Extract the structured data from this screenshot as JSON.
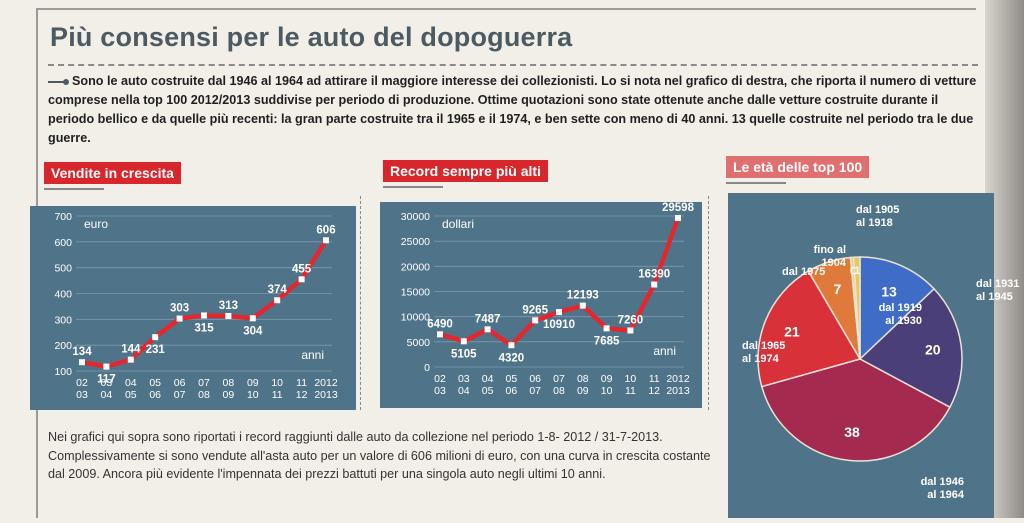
{
  "title": "Più consensi per le auto del dopoguerra",
  "intro": "Sono le auto costruite dal 1946 al 1964 ad attirare il maggiore interesse dei collezionisti. Lo si nota nel grafico di destra, che riporta il numero di vetture comprese nella top 100 2012/2013 suddivise per periodo di produzione. Ottime quotazioni sono state ottenute anche dalle vetture costruite durante il periodo bellico e da quelle più recenti: la gran parte costruite tra il 1965 e il 1974, e ben sette con meno di 40 anni. 13 quelle costruite nel periodo tra le due guerre.",
  "caption": "Nei grafici qui sopra sono riportati i record raggiunti dalle auto da collezione nel periodo 1-8- 2012 / 31-7-2013. Complessivamente si sono vendute all'asta auto per un valore di 606 milioni di euro, con una curva in crescita costante dal 2009. Ancora più evidente l'impennata dei prezzi battuti per una singola auto negli ultimi 10 anni.",
  "colors": {
    "accent": "#d8262d",
    "chart_bg": "#4f7389",
    "line": "#e5262d"
  },
  "chart_data": [
    {
      "type": "line",
      "title": "Vendite in crescita",
      "unit_label": "euro",
      "x_unit_label": "anni",
      "categories": [
        "02 03",
        "03 04",
        "04 05",
        "05 06",
        "06 07",
        "07 08",
        "08 09",
        "09 10",
        "10 11",
        "11 12",
        "2012 2013"
      ],
      "values": [
        134,
        117,
        144,
        231,
        303,
        315,
        313,
        304,
        374,
        455,
        606
      ],
      "ylim": [
        100,
        700
      ],
      "yticks": [
        100,
        200,
        300,
        400,
        500,
        600,
        700
      ],
      "grid": true
    },
    {
      "type": "line",
      "title": "Record sempre più alti",
      "unit_label": "dollari",
      "x_unit_label": "anni",
      "categories": [
        "02 03",
        "03 04",
        "04 05",
        "05 06",
        "06 07",
        "07 08",
        "08 09",
        "09 10",
        "10 11",
        "11 12",
        "2012 2013"
      ],
      "values": [
        6490,
        5105,
        7487,
        4320,
        9265,
        10910,
        12193,
        7685,
        7260,
        16390,
        29598
      ],
      "ylim": [
        0,
        30000
      ],
      "yticks": [
        0,
        5000,
        10000,
        15000,
        20000,
        25000,
        30000
      ],
      "grid": true
    },
    {
      "type": "pie",
      "title": "Le età delle top 100",
      "slices": [
        {
          "label": "dal 1919 al 1930",
          "value": 13,
          "color": "#3f6cc6"
        },
        {
          "label": "dal 1931 al 1945",
          "value": 20,
          "color": "#4a3f78"
        },
        {
          "label": "dal 1946 al 1964",
          "value": 38,
          "color": "#a42a50"
        },
        {
          "label": "dal 1965 al 1974",
          "value": 21,
          "color": "#d8313a"
        },
        {
          "label": "dal 1975",
          "value": 7,
          "color": "#e07a3a"
        },
        {
          "label": "fino al 1904",
          "value": 0,
          "color": "#e3d08a"
        },
        {
          "label": "dal 1905 al 1918",
          "value": 1,
          "color": "#e9c95a"
        }
      ]
    }
  ]
}
